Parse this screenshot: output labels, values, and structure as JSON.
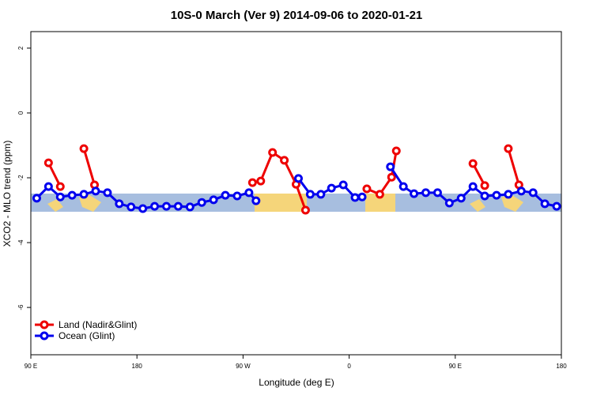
{
  "chart_data": {
    "type": "line",
    "title": "10S-0 March (Ver 9)   2014-09-06 to 2020-01-21",
    "x_label": "Longitude (deg E)",
    "y_label": "XCO2 - MLO trend (ppm)",
    "xlim": [
      90,
      540
    ],
    "xticks": [
      {
        "value": 90,
        "label": "90 E"
      },
      {
        "value": 180,
        "label": "180"
      },
      {
        "value": 270,
        "label": "90 W"
      },
      {
        "value": 360,
        "label": "0"
      },
      {
        "value": 450,
        "label": "90 E"
      },
      {
        "value": 540,
        "label": "180"
      }
    ],
    "ylim": [
      -7.46,
      2.51
    ],
    "yticks": [
      2,
      0,
      -2,
      -4,
      -6
    ],
    "legend_position": "bottom-left",
    "series": [
      {
        "name": "Land (Nadir&Glint)",
        "color": "#ee0000",
        "x": [
          105,
          115,
          125,
          135,
          144,
          200,
          278,
          285,
          295,
          305,
          315,
          323,
          345,
          375,
          386,
          396,
          400,
          430,
          465,
          475,
          485,
          495,
          504
        ],
        "values": [
          -1.54,
          -2.27,
          null,
          -1.1,
          -2.22,
          null,
          -2.15,
          -2.1,
          -1.22,
          -1.46,
          -2.2,
          -3.0,
          null,
          -2.34,
          -2.51,
          -1.98,
          -1.17,
          null,
          -1.56,
          -2.24,
          null,
          -1.1,
          -2.22
        ]
      },
      {
        "name": "Ocean (Glint)",
        "color": "#0000ee",
        "x": [
          95,
          105,
          115,
          125,
          135,
          145,
          155,
          165,
          175,
          185,
          195,
          205,
          215,
          225,
          235,
          245,
          255,
          265,
          275,
          281,
          300,
          317,
          327,
          336,
          345,
          355,
          365,
          371,
          383,
          395,
          406,
          415,
          425,
          435,
          445,
          455,
          465,
          475,
          485,
          495,
          506,
          516,
          526,
          536
        ],
        "values": [
          -2.63,
          -2.27,
          -2.59,
          -2.54,
          -2.51,
          -2.41,
          -2.46,
          -2.8,
          -2.9,
          -2.95,
          -2.88,
          -2.88,
          -2.88,
          -2.9,
          -2.76,
          -2.68,
          -2.54,
          -2.56,
          -2.46,
          -2.71,
          null,
          -2.02,
          -2.51,
          -2.51,
          -2.32,
          -2.22,
          -2.61,
          -2.59,
          null,
          -1.66,
          -2.27,
          -2.49,
          -2.46,
          -2.46,
          -2.78,
          -2.63,
          -2.27,
          -2.56,
          -2.54,
          -2.51,
          -2.41,
          -2.46,
          -2.8,
          -2.88
        ]
      }
    ]
  }
}
